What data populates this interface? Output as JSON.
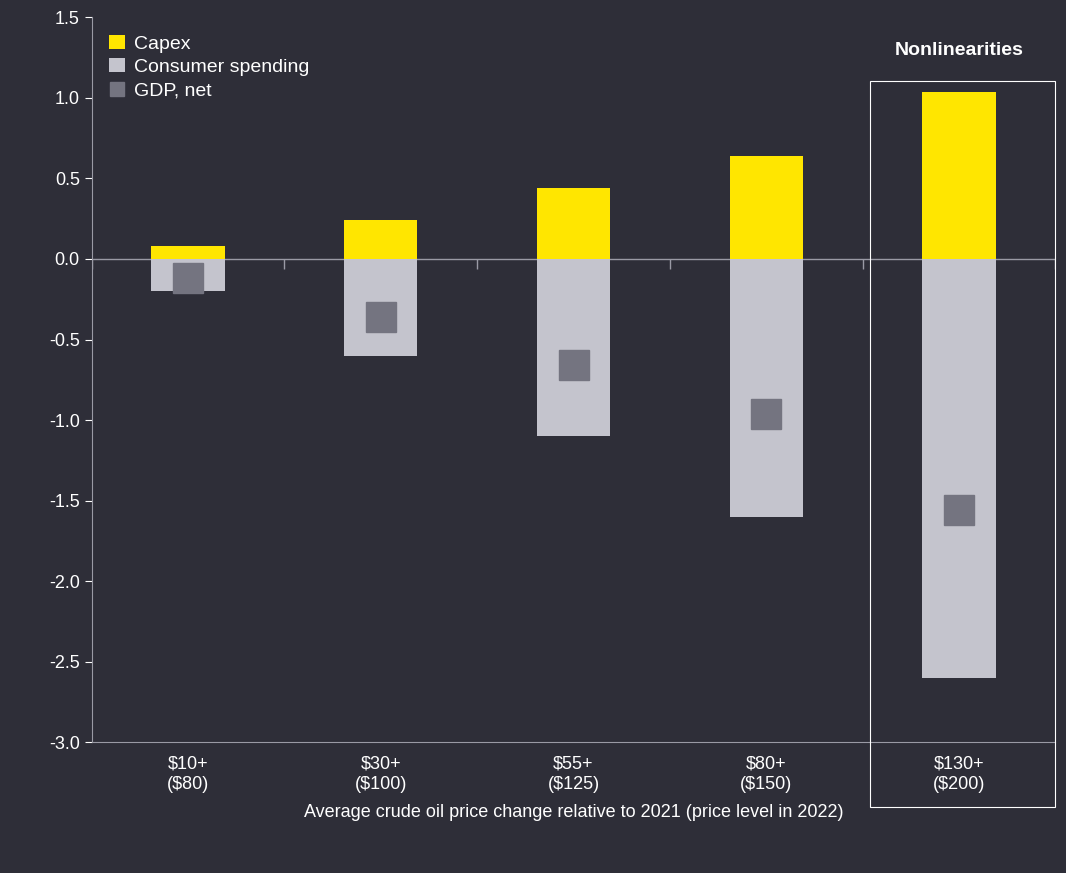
{
  "chart_data": {
    "type": "bar",
    "x_label": "Average crude oil price change relative to 2021 (price level in 2022)",
    "categories": [
      "$10+\n($80)",
      "$30+\n($100)",
      "$55+\n($125)",
      "$80+\n($150)",
      "$130+\n($200)"
    ],
    "series": [
      {
        "name": "Capex",
        "type": "bar",
        "color": "#FFE600",
        "values": [
          0.08,
          0.24,
          0.44,
          0.64,
          1.04
        ]
      },
      {
        "name": "Consumer spending",
        "type": "bar",
        "color": "#C4C4CD",
        "values": [
          -0.2,
          -0.6,
          -1.1,
          -1.6,
          -2.6
        ]
      },
      {
        "name": "GDP, net",
        "type": "scatter",
        "marker": "square",
        "color": "#747480",
        "values": [
          -0.12,
          -0.36,
          -0.66,
          -0.96,
          -1.56
        ]
      }
    ],
    "annotation": {
      "text": "Nonlinearities",
      "category": "$130+\n($200)"
    },
    "ylim": [
      -3.0,
      1.5
    ],
    "yticks": [
      {
        "value": -3.0,
        "label": "-3.0"
      },
      {
        "value": -2.5,
        "label": "-2.5"
      },
      {
        "value": -2.0,
        "label": "-2.0"
      },
      {
        "value": -1.5,
        "label": "-1.5"
      },
      {
        "value": -1.0,
        "label": "-1.0"
      },
      {
        "value": -0.5,
        "label": "-0.5"
      },
      {
        "value": 0.0,
        "label": "0.0"
      },
      {
        "value": 0.5,
        "label": "0.5"
      },
      {
        "value": 1.0,
        "label": "1.0"
      },
      {
        "value": 1.5,
        "label": "1.5"
      }
    ],
    "legend": "upper left",
    "grid": false
  }
}
